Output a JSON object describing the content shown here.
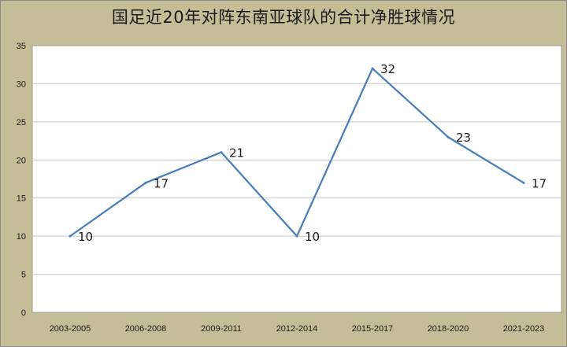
{
  "chart_data": {
    "type": "line",
    "title": "国足近20年对阵东南亚球队的合计净胜球情况",
    "categories": [
      "2003-2005",
      "2006-2008",
      "2009-2011",
      "2012-2014",
      "2015-2017",
      "2018-2020",
      "2021-2023"
    ],
    "series": [
      {
        "values": [
          10,
          17,
          21,
          10,
          32,
          23,
          17
        ]
      }
    ],
    "ylim": [
      0,
      35
    ],
    "yticks": [
      0,
      5,
      10,
      15,
      20,
      25,
      30,
      35
    ],
    "grid": true,
    "legend": "none",
    "colors": {
      "line": "#4a7ebb",
      "plot_bg": "#ffffff",
      "frame_bg": "#c4bd97",
      "grid": "#c8c8c8"
    }
  }
}
